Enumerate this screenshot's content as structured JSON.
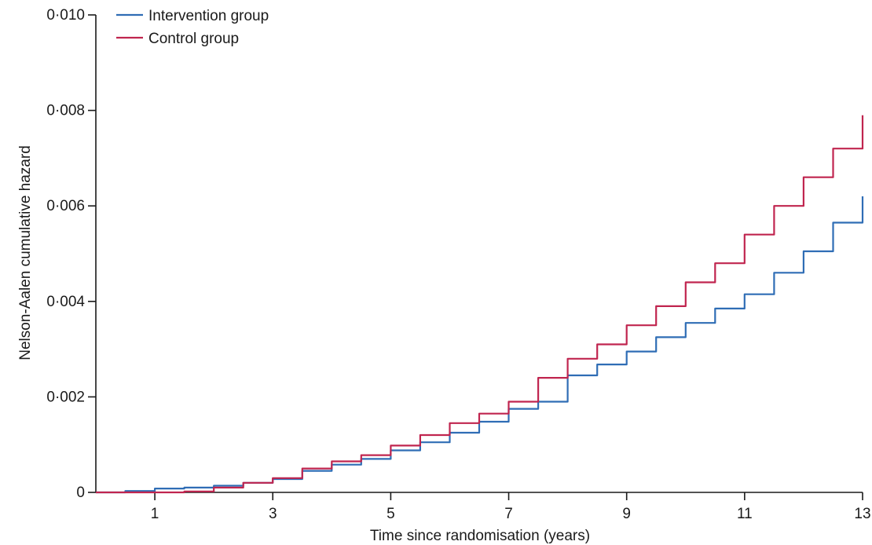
{
  "chart_data": {
    "type": "line",
    "title": "",
    "xlabel": "Time since randomisation (years)",
    "ylabel": "Nelson-Aalen cumulative hazard",
    "xlim": [
      0,
      13
    ],
    "ylim": [
      0,
      0.01
    ],
    "x_ticks": [
      1,
      3,
      5,
      7,
      9,
      11,
      13
    ],
    "x_tick_labels": [
      "1",
      "3",
      "5",
      "7",
      "9",
      "11",
      "13"
    ],
    "y_ticks": [
      0,
      0.002,
      0.004,
      0.006,
      0.008,
      0.01
    ],
    "y_tick_labels": [
      "0",
      "0·002",
      "0·004",
      "0·006",
      "0·008",
      "0·010"
    ],
    "grid": false,
    "legend_position": "top-left",
    "series": [
      {
        "name": "Intervention group",
        "color": "#2f6db5",
        "x": [
          0,
          0.5,
          1,
          1.5,
          2,
          2.5,
          3,
          3.5,
          4,
          4.5,
          5,
          5.5,
          6,
          6.5,
          7,
          7.5,
          8,
          8.5,
          9,
          9.5,
          10,
          10.5,
          11,
          11.5,
          12,
          12.5,
          13
        ],
        "y": [
          0,
          3e-05,
          8e-05,
          0.0001,
          0.00014,
          0.0002,
          0.00028,
          0.00045,
          0.00058,
          0.0007,
          0.00088,
          0.00105,
          0.00125,
          0.00148,
          0.00175,
          0.0019,
          0.00245,
          0.00268,
          0.00295,
          0.00325,
          0.00355,
          0.00385,
          0.00415,
          0.0046,
          0.00505,
          0.00565,
          0.0062
        ]
      },
      {
        "name": "Control group",
        "color": "#c0254f",
        "x": [
          0,
          0.5,
          1,
          1.5,
          2,
          2.5,
          3,
          3.5,
          4,
          4.5,
          5,
          5.5,
          6,
          6.5,
          7,
          7.5,
          8,
          8.5,
          9,
          9.5,
          10,
          10.5,
          11,
          11.5,
          12,
          12.5,
          13
        ],
        "y": [
          0,
          0,
          0,
          2e-05,
          0.0001,
          0.0002,
          0.0003,
          0.0005,
          0.00065,
          0.00078,
          0.00098,
          0.0012,
          0.00145,
          0.00165,
          0.0019,
          0.0024,
          0.0028,
          0.0031,
          0.0035,
          0.0039,
          0.0044,
          0.0048,
          0.0054,
          0.006,
          0.0066,
          0.0072,
          0.0079
        ]
      }
    ]
  }
}
